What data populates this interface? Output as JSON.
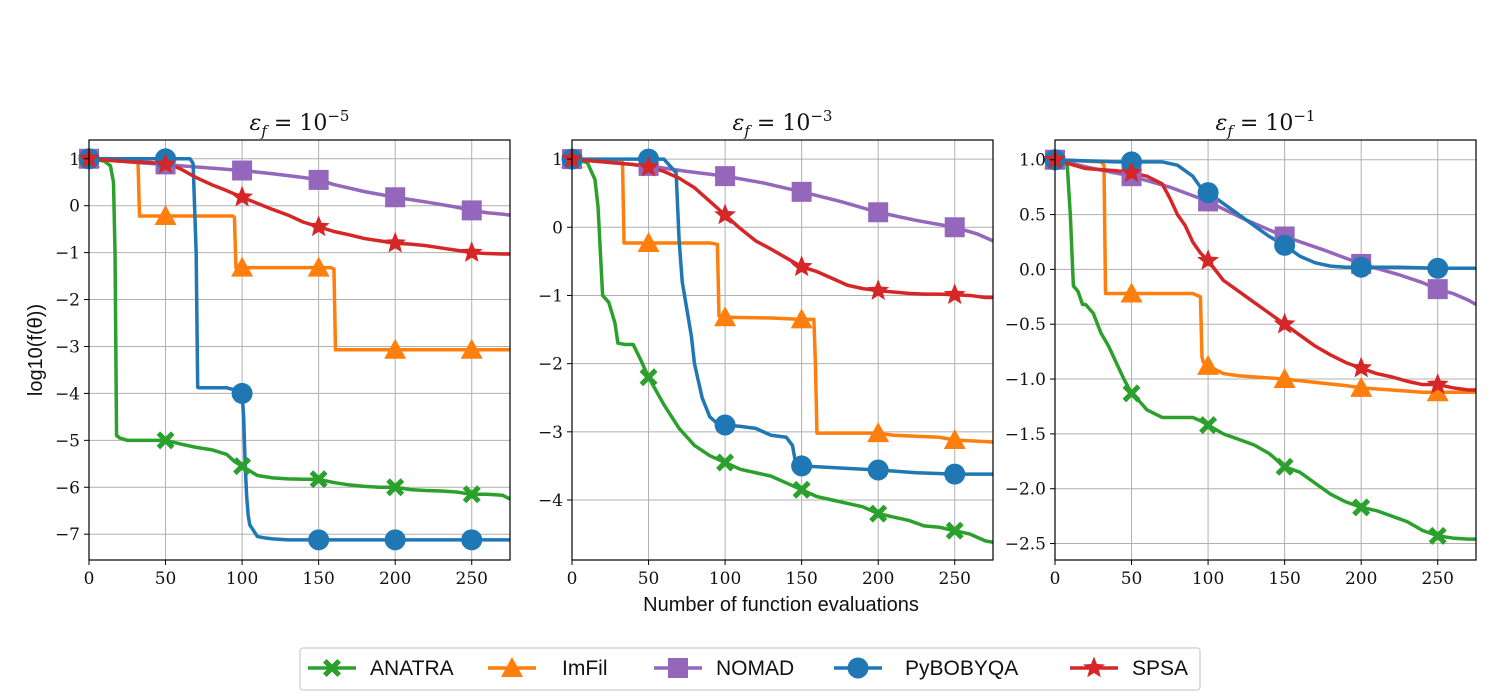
{
  "figure": {
    "xlabel": "Number of function evaluations",
    "ylabel": "log10(f(θ))",
    "legend_placement": "bottom-center"
  },
  "legend": [
    {
      "name": "ANATRA",
      "color": "#2ca02c",
      "marker": "X"
    },
    {
      "name": "ImFil",
      "color": "#ff7f0e",
      "marker": "triangle"
    },
    {
      "name": "NOMAD",
      "color": "#9467bd",
      "marker": "square"
    },
    {
      "name": "PyBOBYQA",
      "color": "#1f77b4",
      "marker": "circle"
    },
    {
      "name": "SPSA",
      "color": "#d62728",
      "marker": "star"
    }
  ],
  "chart_data": [
    {
      "type": "line",
      "title": "ε_f = 10^-5",
      "title_base": "ε",
      "title_sub": "f",
      "title_eq": " = 10",
      "title_exp": "−5",
      "xlim": [
        0,
        275
      ],
      "ylim": [
        -7.55,
        1.4
      ],
      "xticks": [
        0,
        50,
        100,
        150,
        200,
        250
      ],
      "yticks": [
        1,
        0,
        -1,
        -2,
        -3,
        -4,
        -5,
        -6,
        -7
      ],
      "ytick_labels": [
        "1",
        "0",
        "−1",
        "−2",
        "−3",
        "−4",
        "−5",
        "−6",
        "−7"
      ],
      "series": [
        {
          "name": "ANATRA",
          "x": [
            0,
            10,
            14,
            16,
            17,
            18,
            19,
            20,
            25,
            30,
            40,
            50,
            60,
            70,
            80,
            90,
            95,
            100,
            105,
            110,
            120,
            130,
            140,
            150,
            160,
            170,
            180,
            190,
            200,
            210,
            220,
            230,
            240,
            250,
            260,
            270,
            275
          ],
          "y": [
            1.0,
            0.95,
            0.85,
            0.5,
            -1.0,
            -4.9,
            -4.92,
            -4.95,
            -5.0,
            -5.0,
            -5.0,
            -5.0,
            -5.08,
            -5.15,
            -5.2,
            -5.3,
            -5.45,
            -5.55,
            -5.65,
            -5.75,
            -5.8,
            -5.82,
            -5.83,
            -5.83,
            -5.9,
            -5.95,
            -5.98,
            -6.0,
            -6.0,
            -6.05,
            -6.07,
            -6.08,
            -6.1,
            -6.15,
            -6.15,
            -6.17,
            -6.25
          ],
          "markers_x": [
            0,
            50,
            100,
            150,
            200,
            250
          ]
        },
        {
          "name": "ImFil",
          "x": [
            0,
            30,
            32,
            33,
            60,
            80,
            94,
            95,
            96,
            100,
            120,
            150,
            158,
            160,
            161,
            200,
            250,
            275
          ],
          "y": [
            1.0,
            0.95,
            0.95,
            -0.22,
            -0.22,
            -0.22,
            -0.22,
            -0.25,
            -1.32,
            -1.32,
            -1.32,
            -1.32,
            -1.32,
            -1.35,
            -3.07,
            -3.07,
            -3.07,
            -3.07
          ],
          "markers_x": [
            0,
            50,
            100,
            150,
            200,
            250
          ]
        },
        {
          "name": "NOMAD",
          "x": [
            0,
            20,
            40,
            50,
            60,
            80,
            100,
            120,
            140,
            150,
            160,
            180,
            200,
            220,
            240,
            250,
            260,
            270,
            275
          ],
          "y": [
            1.0,
            0.95,
            0.9,
            0.88,
            0.85,
            0.8,
            0.75,
            0.68,
            0.6,
            0.55,
            0.45,
            0.3,
            0.18,
            0.08,
            -0.03,
            -0.1,
            -0.15,
            -0.18,
            -0.2
          ],
          "markers_x": [
            0,
            50,
            100,
            150,
            200,
            250
          ]
        },
        {
          "name": "PyBOBYQA",
          "x": [
            0,
            20,
            40,
            50,
            60,
            66,
            68,
            70,
            71,
            72,
            80,
            90,
            98,
            100,
            101,
            102,
            103,
            104,
            105,
            108,
            110,
            115,
            120,
            130,
            150,
            200,
            250,
            275
          ],
          "y": [
            1.0,
            1.0,
            1.0,
            1.0,
            1.0,
            1.0,
            0.9,
            -1.0,
            -3.87,
            -3.88,
            -3.88,
            -3.88,
            -3.95,
            -4.0,
            -4.5,
            -5.5,
            -6.2,
            -6.6,
            -6.8,
            -6.95,
            -7.05,
            -7.08,
            -7.1,
            -7.12,
            -7.12,
            -7.12,
            -7.12,
            -7.12
          ],
          "markers_x": [
            0,
            50,
            100,
            150,
            200,
            250
          ]
        },
        {
          "name": "SPSA",
          "x": [
            0,
            20,
            30,
            40,
            45,
            50,
            55,
            60,
            70,
            80,
            90,
            100,
            110,
            120,
            130,
            140,
            150,
            160,
            170,
            180,
            190,
            200,
            210,
            220,
            230,
            240,
            250,
            260,
            270,
            275
          ],
          "y": [
            1.0,
            0.95,
            0.93,
            0.92,
            0.9,
            0.88,
            0.85,
            0.78,
            0.6,
            0.45,
            0.32,
            0.18,
            0.05,
            -0.08,
            -0.2,
            -0.35,
            -0.45,
            -0.55,
            -0.62,
            -0.7,
            -0.75,
            -0.8,
            -0.82,
            -0.85,
            -0.9,
            -0.95,
            -1.0,
            -1.02,
            -1.03,
            -1.03
          ],
          "markers_x": [
            0,
            50,
            100,
            150,
            200,
            250
          ]
        }
      ]
    },
    {
      "type": "line",
      "title": "ε_f = 10^-3",
      "title_base": "ε",
      "title_sub": "f",
      "title_eq": " = 10",
      "title_exp": "−3",
      "xlim": [
        0,
        275
      ],
      "ylim": [
        -4.88,
        1.28
      ],
      "xticks": [
        0,
        50,
        100,
        150,
        200,
        250
      ],
      "yticks": [
        1,
        0,
        -1,
        -2,
        -3,
        -4
      ],
      "ytick_labels": [
        "1",
        "0",
        "−1",
        "−2",
        "−3",
        "−4"
      ],
      "series": [
        {
          "name": "ANATRA",
          "x": [
            0,
            10,
            15,
            17,
            20,
            24,
            28,
            30,
            35,
            40,
            45,
            50,
            55,
            60,
            70,
            80,
            90,
            100,
            110,
            120,
            130,
            140,
            150,
            160,
            170,
            180,
            190,
            200,
            210,
            220,
            230,
            240,
            250,
            260,
            270,
            275
          ],
          "y": [
            1.0,
            0.95,
            0.7,
            0.3,
            -1.0,
            -1.1,
            -1.4,
            -1.7,
            -1.72,
            -1.72,
            -1.95,
            -2.2,
            -2.4,
            -2.6,
            -2.95,
            -3.2,
            -3.35,
            -3.45,
            -3.55,
            -3.6,
            -3.65,
            -3.75,
            -3.85,
            -3.95,
            -4.0,
            -4.05,
            -4.1,
            -4.2,
            -4.25,
            -4.3,
            -4.38,
            -4.4,
            -4.45,
            -4.5,
            -4.6,
            -4.62
          ],
          "markers_x": [
            0,
            50,
            100,
            150,
            200,
            250
          ]
        },
        {
          "name": "ImFil",
          "x": [
            0,
            30,
            33,
            34,
            60,
            90,
            95,
            96,
            97,
            100,
            130,
            150,
            158,
            159,
            160,
            190,
            200,
            210,
            240,
            250,
            275
          ],
          "y": [
            1.0,
            0.95,
            0.95,
            -0.23,
            -0.23,
            -0.23,
            -0.25,
            -1.3,
            -1.32,
            -1.32,
            -1.33,
            -1.35,
            -1.35,
            -2.0,
            -3.02,
            -3.02,
            -3.02,
            -3.05,
            -3.08,
            -3.12,
            -3.15
          ],
          "markers_x": [
            0,
            50,
            100,
            150,
            200,
            250
          ]
        },
        {
          "name": "NOMAD",
          "x": [
            0,
            25,
            50,
            75,
            100,
            125,
            150,
            175,
            200,
            225,
            250,
            265,
            270,
            275
          ],
          "y": [
            1.0,
            0.95,
            0.9,
            0.82,
            0.75,
            0.65,
            0.52,
            0.38,
            0.22,
            0.1,
            0.0,
            -0.1,
            -0.15,
            -0.2
          ],
          "markers_x": [
            0,
            50,
            100,
            150,
            200,
            250
          ]
        },
        {
          "name": "PyBOBYQA",
          "x": [
            0,
            40,
            50,
            60,
            68,
            70,
            72,
            75,
            78,
            80,
            85,
            90,
            95,
            100,
            110,
            120,
            130,
            140,
            144,
            146,
            150,
            175,
            200,
            225,
            250,
            275
          ],
          "y": [
            1.0,
            1.0,
            1.0,
            1.0,
            0.8,
            -0.2,
            -0.8,
            -1.2,
            -1.6,
            -2.0,
            -2.5,
            -2.78,
            -2.88,
            -2.9,
            -2.92,
            -2.95,
            -3.05,
            -3.08,
            -3.2,
            -3.45,
            -3.5,
            -3.53,
            -3.56,
            -3.6,
            -3.62,
            -3.62
          ],
          "markers_x": [
            0,
            50,
            100,
            150,
            200,
            250
          ]
        },
        {
          "name": "SPSA",
          "x": [
            0,
            25,
            40,
            50,
            60,
            70,
            80,
            90,
            100,
            110,
            120,
            130,
            140,
            150,
            160,
            170,
            180,
            190,
            200,
            210,
            220,
            230,
            240,
            250,
            260,
            270,
            275
          ],
          "y": [
            1.0,
            0.95,
            0.92,
            0.88,
            0.82,
            0.72,
            0.58,
            0.38,
            0.18,
            -0.02,
            -0.2,
            -0.32,
            -0.45,
            -0.58,
            -0.65,
            -0.75,
            -0.85,
            -0.9,
            -0.93,
            -0.95,
            -0.97,
            -0.98,
            -0.98,
            -0.99,
            -1.0,
            -1.03,
            -1.03
          ],
          "markers_x": [
            0,
            50,
            100,
            150,
            200,
            250
          ]
        }
      ]
    },
    {
      "type": "line",
      "title": "ε_f = 10^-1",
      "title_base": "ε",
      "title_sub": "f",
      "title_eq": " = 10",
      "title_exp": "−1",
      "xlim": [
        0,
        275
      ],
      "ylim": [
        -2.65,
        1.18
      ],
      "xticks": [
        0,
        50,
        100,
        150,
        200,
        250
      ],
      "yticks": [
        1.0,
        0.5,
        0.0,
        -0.5,
        -1.0,
        -1.5,
        -2.0,
        -2.5
      ],
      "ytick_labels": [
        "1.0",
        "0.5",
        "0.0",
        "−0.5",
        "−1.0",
        "−1.5",
        "−2.0",
        "−2.5"
      ],
      "series": [
        {
          "name": "ANATRA",
          "x": [
            0,
            8,
            10,
            12,
            15,
            18,
            20,
            25,
            30,
            35,
            40,
            45,
            50,
            55,
            60,
            70,
            80,
            90,
            95,
            100,
            110,
            120,
            130,
            140,
            150,
            160,
            170,
            180,
            190,
            200,
            210,
            220,
            230,
            240,
            250,
            260,
            270,
            275
          ],
          "y": [
            1.0,
            0.95,
            0.5,
            -0.15,
            -0.2,
            -0.32,
            -0.32,
            -0.4,
            -0.58,
            -0.7,
            -0.85,
            -1.0,
            -1.13,
            -1.2,
            -1.28,
            -1.35,
            -1.35,
            -1.35,
            -1.38,
            -1.42,
            -1.5,
            -1.55,
            -1.6,
            -1.68,
            -1.8,
            -1.85,
            -1.95,
            -2.05,
            -2.12,
            -2.17,
            -2.2,
            -2.25,
            -2.3,
            -2.38,
            -2.43,
            -2.45,
            -2.46,
            -2.46
          ],
          "markers_x": [
            0,
            50,
            100,
            150,
            200,
            250
          ]
        },
        {
          "name": "ImFil",
          "x": [
            0,
            30,
            32,
            33,
            60,
            90,
            95,
            96,
            97,
            100,
            110,
            120,
            130,
            150,
            170,
            190,
            200,
            220,
            240,
            250,
            275
          ],
          "y": [
            1.0,
            0.98,
            0.95,
            -0.22,
            -0.22,
            -0.22,
            -0.25,
            -0.8,
            -0.85,
            -0.88,
            -0.95,
            -0.97,
            -0.98,
            -1.0,
            -1.03,
            -1.06,
            -1.08,
            -1.1,
            -1.12,
            -1.12,
            -1.12
          ],
          "markers_x": [
            0,
            50,
            100,
            150,
            200,
            250
          ]
        },
        {
          "name": "NOMAD",
          "x": [
            0,
            25,
            50,
            75,
            100,
            110,
            125,
            150,
            175,
            200,
            225,
            240,
            250,
            260,
            270,
            275
          ],
          "y": [
            1.0,
            0.92,
            0.85,
            0.75,
            0.62,
            0.55,
            0.45,
            0.3,
            0.18,
            0.05,
            -0.05,
            -0.12,
            -0.18,
            -0.22,
            -0.28,
            -0.32
          ],
          "markers_x": [
            0,
            50,
            100,
            150,
            200,
            250
          ]
        },
        {
          "name": "PyBOBYQA",
          "x": [
            0,
            40,
            50,
            60,
            70,
            80,
            90,
            95,
            100,
            110,
            120,
            130,
            140,
            150,
            160,
            170,
            180,
            190,
            200,
            225,
            250,
            275
          ],
          "y": [
            1.0,
            0.98,
            0.98,
            0.98,
            0.98,
            0.95,
            0.85,
            0.75,
            0.7,
            0.6,
            0.5,
            0.4,
            0.3,
            0.22,
            0.12,
            0.06,
            0.03,
            0.02,
            0.02,
            0.02,
            0.01,
            0.01
          ],
          "markers_x": [
            0,
            50,
            100,
            150,
            200,
            250
          ]
        },
        {
          "name": "SPSA",
          "x": [
            0,
            20,
            40,
            50,
            60,
            70,
            75,
            80,
            85,
            90,
            95,
            100,
            110,
            120,
            130,
            140,
            150,
            160,
            170,
            180,
            190,
            200,
            210,
            220,
            230,
            240,
            250,
            260,
            270,
            275
          ],
          "y": [
            1.0,
            0.92,
            0.9,
            0.88,
            0.85,
            0.78,
            0.65,
            0.5,
            0.4,
            0.25,
            0.15,
            0.08,
            -0.1,
            -0.2,
            -0.3,
            -0.4,
            -0.5,
            -0.6,
            -0.7,
            -0.78,
            -0.85,
            -0.9,
            -0.95,
            -0.98,
            -1.02,
            -1.05,
            -1.05,
            -1.08,
            -1.1,
            -1.1
          ],
          "markers_x": [
            0,
            50,
            100,
            150,
            200,
            250
          ]
        }
      ]
    }
  ]
}
